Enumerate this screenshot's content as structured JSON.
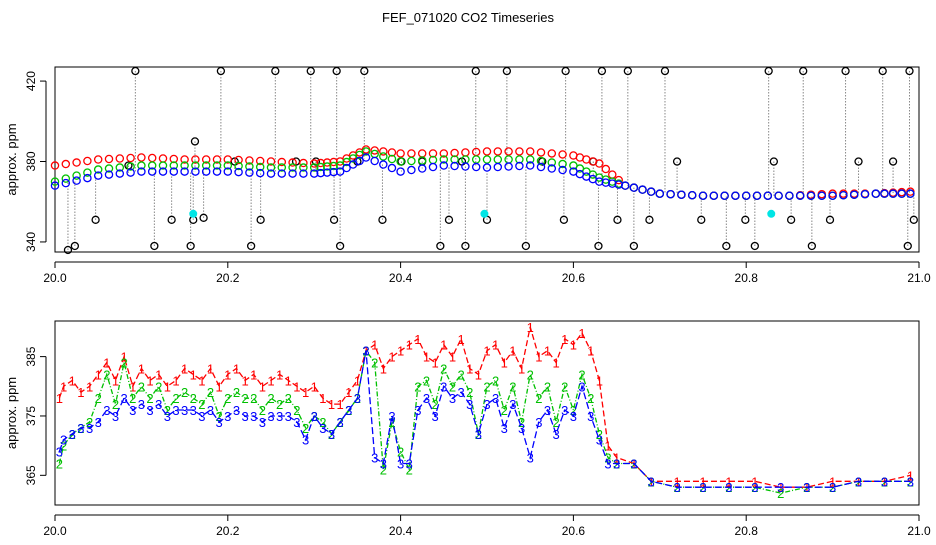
{
  "title": "FEF_071020  CO2 Timeseries",
  "colors": {
    "series1": "#ff0000",
    "series2": "#00c000",
    "series3": "#0000ff",
    "flag": "#000000",
    "cyan": "#00e5e5"
  },
  "chart_data": [
    {
      "type": "scatter",
      "panel": "top",
      "ylabel": "approx. ppm",
      "xlim": [
        20.0,
        21.0
      ],
      "ylim": [
        335,
        427
      ],
      "xticks": [
        20.0,
        20.2,
        20.4,
        20.6,
        20.8,
        21.0
      ],
      "xtick_labels": [
        "20.0",
        "20.2",
        "20.4",
        "20.6",
        "20.8",
        "21.0"
      ],
      "yticks": [
        340,
        380,
        420
      ],
      "ytick_labels": [
        "340",
        "380",
        "420"
      ],
      "grid": false,
      "flagged_points": {
        "x": [
          20.015,
          20.023,
          20.047,
          20.085,
          20.093,
          20.115,
          20.135,
          20.157,
          20.16,
          20.162,
          20.172,
          20.192,
          20.208,
          20.227,
          20.238,
          20.255,
          20.279,
          20.296,
          20.302,
          20.323,
          20.326,
          20.33,
          20.35,
          20.358,
          20.379,
          20.401,
          20.425,
          20.446,
          20.456,
          20.471,
          20.475,
          20.487,
          20.5,
          20.523,
          20.545,
          20.564,
          20.589,
          20.591,
          20.623,
          20.629,
          20.633,
          20.651,
          20.663,
          20.67,
          20.688,
          20.706,
          20.72,
          20.748,
          20.777,
          20.799,
          20.81,
          20.826,
          20.832,
          20.852,
          20.866,
          20.876,
          20.897,
          20.915,
          20.93,
          20.958,
          20.97,
          20.987,
          20.989,
          20.994
        ],
        "y": [
          333,
          338,
          351,
          378,
          425,
          338,
          351,
          338,
          351,
          390,
          352,
          425,
          380,
          338,
          351,
          425,
          380,
          425,
          380,
          351,
          425,
          338,
          380,
          425,
          351,
          380,
          380,
          338,
          351,
          380,
          338,
          425,
          351,
          425,
          338,
          380,
          351,
          425,
          380,
          338,
          425,
          351,
          425,
          338,
          351,
          425,
          380,
          351,
          338,
          351,
          338,
          425,
          380,
          351,
          425,
          338,
          351,
          425,
          380,
          425,
          380,
          338,
          425,
          351
        ]
      },
      "cyan_points": {
        "x": [
          20.16,
          20.497,
          20.829
        ],
        "y": [
          354,
          354,
          354
        ]
      },
      "series": [
        {
          "name": "1",
          "label": "1",
          "color": "#ff0000",
          "x": [
            20.0,
            20.05,
            20.1,
            20.15,
            20.2,
            20.25,
            20.3,
            20.33,
            20.36,
            20.4,
            20.45,
            20.5,
            20.55,
            20.6,
            20.63,
            20.66,
            20.7,
            20.75,
            20.8,
            20.85,
            20.9,
            20.95,
            20.99
          ],
          "y": [
            378,
            381,
            382,
            381,
            381,
            380,
            379,
            380,
            386,
            384,
            384,
            385,
            385,
            383,
            379,
            368,
            364,
            363,
            363,
            363,
            364,
            364,
            365
          ]
        },
        {
          "name": "2",
          "label": "2",
          "color": "#00c000",
          "x": [
            20.0,
            20.05,
            20.1,
            20.15,
            20.2,
            20.25,
            20.3,
            20.33,
            20.36,
            20.4,
            20.45,
            20.5,
            20.55,
            20.6,
            20.63,
            20.66,
            20.7,
            20.75,
            20.8,
            20.85,
            20.9,
            20.95,
            20.99
          ],
          "y": [
            370,
            376,
            378,
            378,
            378,
            377,
            377,
            378,
            385,
            380,
            381,
            381,
            381,
            378,
            372,
            368,
            364,
            363,
            363,
            363,
            363,
            364,
            364
          ]
        },
        {
          "name": "3",
          "label": "3",
          "color": "#0000ff",
          "x": [
            20.0,
            20.05,
            20.1,
            20.15,
            20.2,
            20.25,
            20.3,
            20.33,
            20.36,
            20.4,
            20.45,
            20.5,
            20.55,
            20.6,
            20.63,
            20.66,
            20.7,
            20.75,
            20.8,
            20.85,
            20.9,
            20.95,
            20.99
          ],
          "y": [
            368,
            373,
            375,
            375,
            375,
            374,
            374,
            375,
            382,
            375,
            378,
            377,
            378,
            375,
            370,
            368,
            364,
            363,
            363,
            363,
            363,
            364,
            364
          ]
        }
      ]
    },
    {
      "type": "line",
      "panel": "bottom",
      "ylabel": "approx. ppm",
      "xlim": [
        20.0,
        21.0
      ],
      "ylim": [
        360,
        391
      ],
      "xticks": [
        20.0,
        20.2,
        20.4,
        20.6,
        20.8,
        21.0
      ],
      "xtick_labels": [
        "20.0",
        "20.2",
        "20.4",
        "20.6",
        "20.8",
        "21.0"
      ],
      "yticks": [
        365,
        375,
        385
      ],
      "ytick_labels": [
        "365",
        "375",
        "385"
      ],
      "grid": false,
      "series": [
        {
          "name": "1",
          "label": "1",
          "color": "#ff0000",
          "x": [
            20.005,
            20.01,
            20.02,
            20.03,
            20.04,
            20.05,
            20.06,
            20.07,
            20.08,
            20.09,
            20.1,
            20.11,
            20.12,
            20.13,
            20.14,
            20.15,
            20.16,
            20.17,
            20.18,
            20.19,
            20.2,
            20.21,
            20.22,
            20.23,
            20.24,
            20.25,
            20.26,
            20.27,
            20.28,
            20.29,
            20.3,
            20.31,
            20.32,
            20.33,
            20.34,
            20.35,
            20.36,
            20.37,
            20.38,
            20.39,
            20.4,
            20.41,
            20.42,
            20.43,
            20.44,
            20.45,
            20.46,
            20.47,
            20.48,
            20.49,
            20.5,
            20.51,
            20.52,
            20.53,
            20.54,
            20.55,
            20.56,
            20.57,
            20.58,
            20.59,
            20.6,
            20.61,
            20.62,
            20.63,
            20.64,
            20.65,
            20.67,
            20.69,
            20.72,
            20.75,
            20.78,
            20.81,
            20.84,
            20.87,
            20.9,
            20.93,
            20.96,
            20.99
          ],
          "y": [
            378,
            380,
            381,
            379,
            380,
            382,
            384,
            381,
            385,
            380,
            383,
            381,
            382,
            380,
            381,
            383,
            382,
            381,
            383,
            380,
            382,
            383,
            381,
            382,
            380,
            381,
            382,
            381,
            380,
            379,
            380,
            378,
            377,
            377,
            379,
            381,
            386,
            387,
            383,
            385,
            386,
            387,
            388,
            385,
            384,
            387,
            385,
            388,
            383,
            382,
            386,
            387,
            384,
            386,
            383,
            390,
            385,
            386,
            384,
            388,
            387,
            389,
            386,
            381,
            370,
            368,
            367,
            364,
            364,
            364,
            364,
            364,
            363,
            363,
            364,
            364,
            364,
            365
          ]
        },
        {
          "name": "2",
          "label": "2",
          "color": "#00c000",
          "x": [
            20.005,
            20.01,
            20.02,
            20.03,
            20.04,
            20.05,
            20.06,
            20.07,
            20.08,
            20.09,
            20.1,
            20.11,
            20.12,
            20.13,
            20.14,
            20.15,
            20.16,
            20.17,
            20.18,
            20.19,
            20.2,
            20.21,
            20.22,
            20.23,
            20.24,
            20.25,
            20.26,
            20.27,
            20.28,
            20.29,
            20.3,
            20.31,
            20.32,
            20.33,
            20.34,
            20.35,
            20.36,
            20.37,
            20.38,
            20.39,
            20.4,
            20.41,
            20.42,
            20.43,
            20.44,
            20.45,
            20.46,
            20.47,
            20.48,
            20.49,
            20.5,
            20.51,
            20.52,
            20.53,
            20.54,
            20.55,
            20.56,
            20.57,
            20.58,
            20.59,
            20.6,
            20.61,
            20.62,
            20.63,
            20.64,
            20.65,
            20.67,
            20.69,
            20.72,
            20.75,
            20.78,
            20.81,
            20.84,
            20.87,
            20.9,
            20.93,
            20.96,
            20.99
          ],
          "y": [
            367,
            370,
            372,
            373,
            374,
            378,
            382,
            377,
            384,
            378,
            380,
            378,
            380,
            376,
            378,
            379,
            378,
            377,
            379,
            375,
            378,
            379,
            378,
            378,
            376,
            378,
            377,
            378,
            376,
            373,
            375,
            374,
            372,
            374,
            376,
            378,
            386,
            384,
            366,
            374,
            369,
            366,
            380,
            381,
            377,
            383,
            380,
            382,
            379,
            372,
            380,
            381,
            376,
            380,
            374,
            382,
            378,
            380,
            374,
            380,
            376,
            382,
            378,
            372,
            368,
            367,
            367,
            364,
            363,
            363,
            363,
            363,
            362,
            363,
            363,
            364,
            364,
            364
          ]
        },
        {
          "name": "3",
          "label": "3",
          "color": "#0000ff",
          "x": [
            20.005,
            20.01,
            20.02,
            20.03,
            20.04,
            20.05,
            20.06,
            20.07,
            20.08,
            20.09,
            20.1,
            20.11,
            20.12,
            20.13,
            20.14,
            20.15,
            20.16,
            20.17,
            20.18,
            20.19,
            20.2,
            20.21,
            20.22,
            20.23,
            20.24,
            20.25,
            20.26,
            20.27,
            20.28,
            20.29,
            20.3,
            20.31,
            20.32,
            20.33,
            20.34,
            20.35,
            20.36,
            20.37,
            20.38,
            20.39,
            20.4,
            20.41,
            20.42,
            20.43,
            20.44,
            20.45,
            20.46,
            20.47,
            20.48,
            20.49,
            20.5,
            20.51,
            20.52,
            20.53,
            20.54,
            20.55,
            20.56,
            20.57,
            20.58,
            20.59,
            20.6,
            20.61,
            20.62,
            20.63,
            20.64,
            20.65,
            20.67,
            20.69,
            20.72,
            20.75,
            20.78,
            20.81,
            20.84,
            20.87,
            20.9,
            20.93,
            20.96,
            20.99
          ],
          "y": [
            369,
            371,
            372,
            373,
            373,
            374,
            376,
            375,
            378,
            376,
            377,
            376,
            377,
            375,
            376,
            376,
            376,
            375,
            376,
            374,
            375,
            376,
            375,
            375,
            374,
            375,
            375,
            375,
            374,
            371,
            375,
            373,
            372,
            374,
            376,
            378,
            386,
            368,
            367,
            375,
            367,
            367,
            376,
            378,
            375,
            380,
            378,
            379,
            377,
            372,
            377,
            378,
            373,
            377,
            373,
            368,
            374,
            376,
            372,
            376,
            375,
            380,
            375,
            371,
            367,
            367,
            367,
            364,
            363,
            363,
            363,
            363,
            363,
            363,
            363,
            364,
            364,
            364
          ]
        }
      ]
    }
  ]
}
